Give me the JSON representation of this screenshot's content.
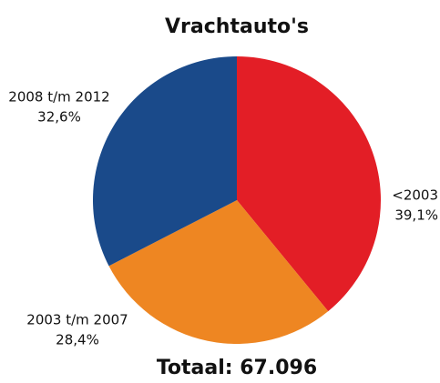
{
  "chart_data": {
    "type": "pie",
    "title": "Vrachtauto's",
    "categories": [
      "<2003",
      "2003 t/m 2007",
      "2008 t/m 2012"
    ],
    "values": [
      39.1,
      28.4,
      32.6
    ],
    "value_labels": [
      "39,1%",
      "28,4%",
      "32,6%"
    ],
    "colors": [
      "#e31e26",
      "#ee8622",
      "#1a4a8a"
    ],
    "footer": "Totaal: 67.096"
  }
}
